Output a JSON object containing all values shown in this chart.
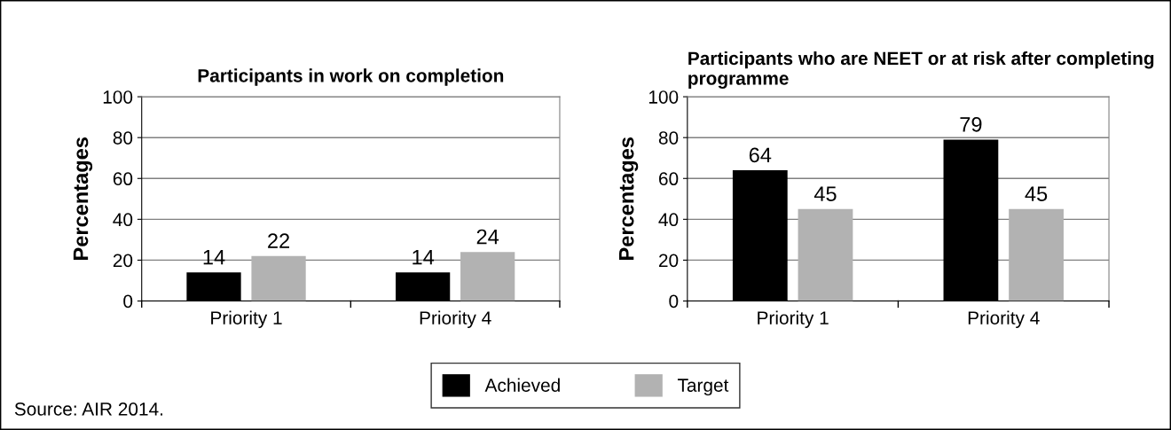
{
  "chart_data": [
    {
      "type": "bar",
      "title": "Participants in work on completion",
      "ylabel": "Percentages",
      "categories": [
        "Priority 1",
        "Priority 4"
      ],
      "series": [
        {
          "name": "Achieved",
          "color": "#000000",
          "values": [
            14,
            14
          ]
        },
        {
          "name": "Target",
          "color": "#b2b2b2",
          "values": [
            22,
            24
          ]
        }
      ],
      "ylim": [
        0,
        100
      ],
      "yticks": [
        0,
        20,
        40,
        60,
        80,
        100
      ],
      "grid": "y",
      "data_labels": true,
      "legend": "bottom",
      "annotations": [
        "Source: AIR 2014."
      ]
    },
    {
      "type": "bar",
      "title": "Participants who are NEET or at risk after completing programme",
      "ylabel": "Percentages",
      "categories": [
        "Priority 1",
        "Priority 4"
      ],
      "series": [
        {
          "color": "#000000",
          "values": [
            64,
            79
          ]
        },
        {
          "color": "#b2b2b2",
          "values": [
            45,
            45
          ]
        }
      ],
      "ylim": [
        0,
        100
      ],
      "yticks": [
        0,
        20,
        40,
        60,
        80,
        100
      ],
      "grid": "y",
      "data_labels": true
    }
  ]
}
